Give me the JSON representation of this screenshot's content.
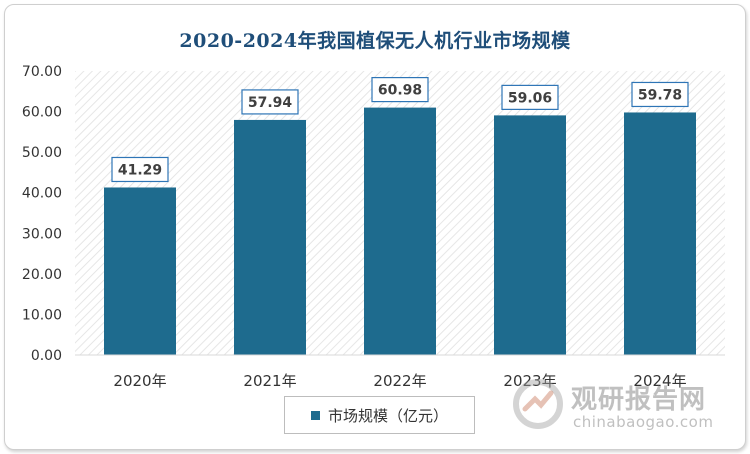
{
  "chart_data": {
    "type": "bar",
    "title": "2020-2024年我国植保无人机行业市场规模",
    "categories": [
      "2020年",
      "2021年",
      "2022年",
      "2023年",
      "2024年"
    ],
    "series": [
      {
        "name": "市场规模（亿元）",
        "values": [
          41.29,
          57.94,
          60.98,
          59.06,
          59.78
        ]
      }
    ],
    "data_labels": [
      "41.29",
      "57.94",
      "60.98",
      "59.06",
      "59.78"
    ],
    "yticks": [
      "0.00",
      "10.00",
      "20.00",
      "30.00",
      "40.00",
      "50.00",
      "60.00",
      "70.00"
    ],
    "ylim": [
      0,
      70
    ],
    "xlabel": "",
    "ylabel": "",
    "grid": false,
    "legend_position": "bottom",
    "colors": {
      "bar": "#1e6b8e",
      "title": "#1f4e79",
      "label_border": "#2e75b6"
    }
  },
  "watermark": {
    "cn": "观研报告网",
    "en": "chinabaogao.com"
  }
}
